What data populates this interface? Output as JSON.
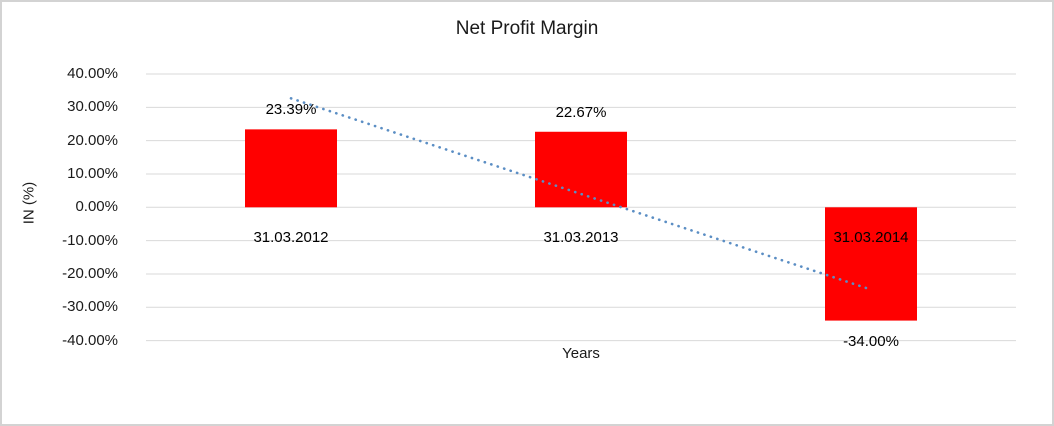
{
  "window": {
    "background_color": "#ffffff",
    "frame_border_color": "#d3d3d3"
  },
  "chart_data": {
    "type": "bar",
    "title": "Net Profit Margin",
    "xlabel": "Years",
    "ylabel": "IN (%)",
    "categories": [
      "31.03.2012",
      "31.03.2013",
      "31.03.2014"
    ],
    "values": [
      23.39,
      22.67,
      -34.0
    ],
    "value_labels": [
      "23.39%",
      "22.67%",
      "-34.00%"
    ],
    "bar_color": "#ff0000",
    "ylim": [
      -40,
      40
    ],
    "ytick_step": 10,
    "ytick_labels": [
      "40.00%",
      "30.00%",
      "20.00%",
      "10.00%",
      "0.00%",
      "-10.00%",
      "-20.00%",
      "-30.00%",
      "-40.00%"
    ],
    "grid": true,
    "gridline_color": "#d9d9d9",
    "legend": "none",
    "trendline": {
      "type": "linear",
      "style": "dotted",
      "color": "#5b8ec4",
      "start_value": 32.7,
      "end_value": -24.7
    }
  }
}
